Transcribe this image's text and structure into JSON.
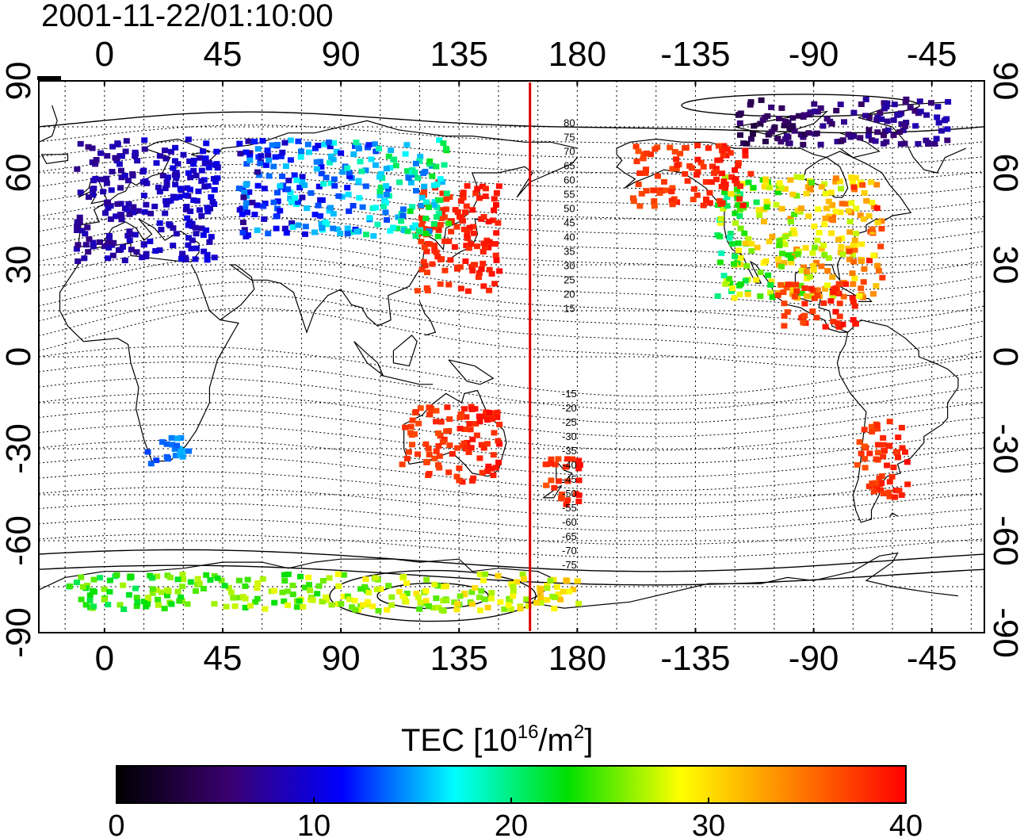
{
  "timestamp": "2001-11-22/01:10:00",
  "map": {
    "x_ticks": [
      "0",
      "45",
      "90",
      "135",
      "180",
      "-135",
      "-90",
      "-45"
    ],
    "y_ticks": [
      "90",
      "60",
      "30",
      "0",
      "-30",
      "-60",
      "-90"
    ],
    "contour_labels": [
      "80",
      "75",
      "70",
      "65",
      "60",
      "55",
      "50",
      "45",
      "40",
      "35",
      "30",
      "25",
      "20",
      "15",
      "-15",
      "-20",
      "-25",
      "-30",
      "-35",
      "-40",
      "-45",
      "-50",
      "-55",
      "-60",
      "-65",
      "-70",
      "-75"
    ],
    "terminator_longitude": 162,
    "terminator_color": "#dd0000"
  },
  "colorbar": {
    "title": "TEC  [10",
    "title_exp": "16",
    "title_unit": "/m",
    "title_unit_exp": "2",
    "title_close": "]",
    "ticks": [
      "0",
      "10",
      "20",
      "30",
      "40"
    ],
    "min": 0,
    "max": 40,
    "stops": [
      "#000000",
      "#3a0070",
      "#0000ff",
      "#00ffff",
      "#00e000",
      "#ffff00",
      "#ff8000",
      "#ff0000"
    ]
  },
  "tec_regions": [
    {
      "name": "europe",
      "lon": [
        -12,
        42
      ],
      "lat": [
        32,
        72
      ],
      "tec": [
        6,
        11
      ]
    },
    {
      "name": "east-asia",
      "lon": [
        118,
        150
      ],
      "lat": [
        22,
        58
      ],
      "tec": [
        37,
        40
      ]
    },
    {
      "name": "north-america",
      "lon": [
        -128,
        -65
      ],
      "lat": [
        20,
        60
      ],
      "tec": [
        18,
        40
      ]
    },
    {
      "name": "alaska-canada",
      "lon": [
        -160,
        -115
      ],
      "lat": [
        50,
        70
      ],
      "tec": [
        36,
        40
      ]
    },
    {
      "name": "central-america",
      "lon": [
        -105,
        -75
      ],
      "lat": [
        10,
        25
      ],
      "tec": [
        36,
        40
      ]
    },
    {
      "name": "australia",
      "lon": [
        112,
        150
      ],
      "lat": [
        -40,
        -15
      ],
      "tec": [
        36,
        40
      ]
    },
    {
      "name": "new-zealand",
      "lon": [
        165,
        180
      ],
      "lat": [
        -48,
        -32
      ],
      "tec": [
        36,
        40
      ]
    },
    {
      "name": "south-america",
      "lon": [
        -75,
        -55
      ],
      "lat": [
        -45,
        -20
      ],
      "tec": [
        36,
        40
      ]
    },
    {
      "name": "southern-africa",
      "lon": [
        15,
        32
      ],
      "lat": [
        -35,
        -25
      ],
      "tec": [
        12,
        16
      ]
    },
    {
      "name": "antarctica-ring",
      "lon": [
        -15,
        180
      ],
      "lat": [
        -82,
        -70
      ],
      "tec": [
        20,
        32
      ]
    },
    {
      "name": "arctic",
      "lon": [
        -120,
        -40
      ],
      "lat": [
        70,
        85
      ],
      "tec": [
        3,
        9
      ]
    },
    {
      "name": "siberia",
      "lon": [
        50,
        130
      ],
      "lat": [
        40,
        72
      ],
      "tec": [
        6,
        24
      ]
    }
  ]
}
